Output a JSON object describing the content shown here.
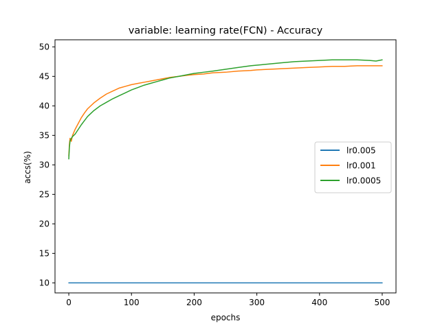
{
  "chart_data": {
    "type": "line",
    "title": "variable: learning rate(FCN) - Accuracy",
    "xlabel": "epochs",
    "ylabel": "accs(%)",
    "xlim": [
      -22,
      522
    ],
    "ylim": [
      8.3,
      51.2
    ],
    "xticks": [
      0,
      100,
      200,
      300,
      400,
      500
    ],
    "yticks": [
      10,
      15,
      20,
      25,
      30,
      35,
      40,
      45,
      50
    ],
    "grid": false,
    "legend_position": "center-right",
    "series": [
      {
        "name": "lr0.005",
        "color": "#1f77b4",
        "x": [
          0,
          500
        ],
        "y": [
          10,
          10
        ]
      },
      {
        "name": "lr0.001",
        "color": "#ff7f0e",
        "x": [
          0,
          1,
          2,
          4,
          6,
          8,
          10,
          15,
          20,
          25,
          30,
          40,
          50,
          60,
          70,
          80,
          90,
          100,
          110,
          120,
          130,
          140,
          150,
          160,
          175,
          190,
          200,
          215,
          230,
          250,
          270,
          290,
          300,
          320,
          340,
          360,
          380,
          400,
          420,
          440,
          460,
          480,
          490,
          500
        ],
        "y": [
          31.5,
          33.5,
          34.5,
          34.0,
          35.0,
          35.5,
          36.0,
          37.0,
          38.0,
          38.8,
          39.5,
          40.5,
          41.3,
          42.0,
          42.5,
          43.0,
          43.3,
          43.6,
          43.8,
          44.0,
          44.2,
          44.4,
          44.6,
          44.8,
          45.0,
          45.2,
          45.3,
          45.4,
          45.6,
          45.7,
          45.9,
          46.0,
          46.1,
          46.2,
          46.3,
          46.4,
          46.5,
          46.6,
          46.7,
          46.7,
          46.8,
          46.8,
          46.8,
          46.8
        ]
      },
      {
        "name": "lr0.0005",
        "color": "#2ca02c",
        "x": [
          0,
          1,
          2,
          4,
          6,
          8,
          10,
          15,
          20,
          25,
          30,
          40,
          50,
          60,
          70,
          80,
          90,
          100,
          110,
          120,
          130,
          140,
          150,
          160,
          175,
          190,
          200,
          215,
          230,
          250,
          270,
          290,
          300,
          320,
          340,
          360,
          380,
          400,
          420,
          440,
          460,
          480,
          490,
          500
        ],
        "y": [
          31.0,
          33.0,
          34.0,
          34.5,
          34.8,
          35.0,
          35.2,
          36.0,
          36.8,
          37.5,
          38.2,
          39.2,
          40.0,
          40.6,
          41.2,
          41.7,
          42.2,
          42.7,
          43.1,
          43.5,
          43.8,
          44.1,
          44.4,
          44.7,
          45.0,
          45.3,
          45.5,
          45.7,
          45.9,
          46.2,
          46.5,
          46.8,
          46.9,
          47.1,
          47.3,
          47.5,
          47.6,
          47.7,
          47.8,
          47.8,
          47.8,
          47.7,
          47.6,
          47.8
        ]
      }
    ]
  }
}
